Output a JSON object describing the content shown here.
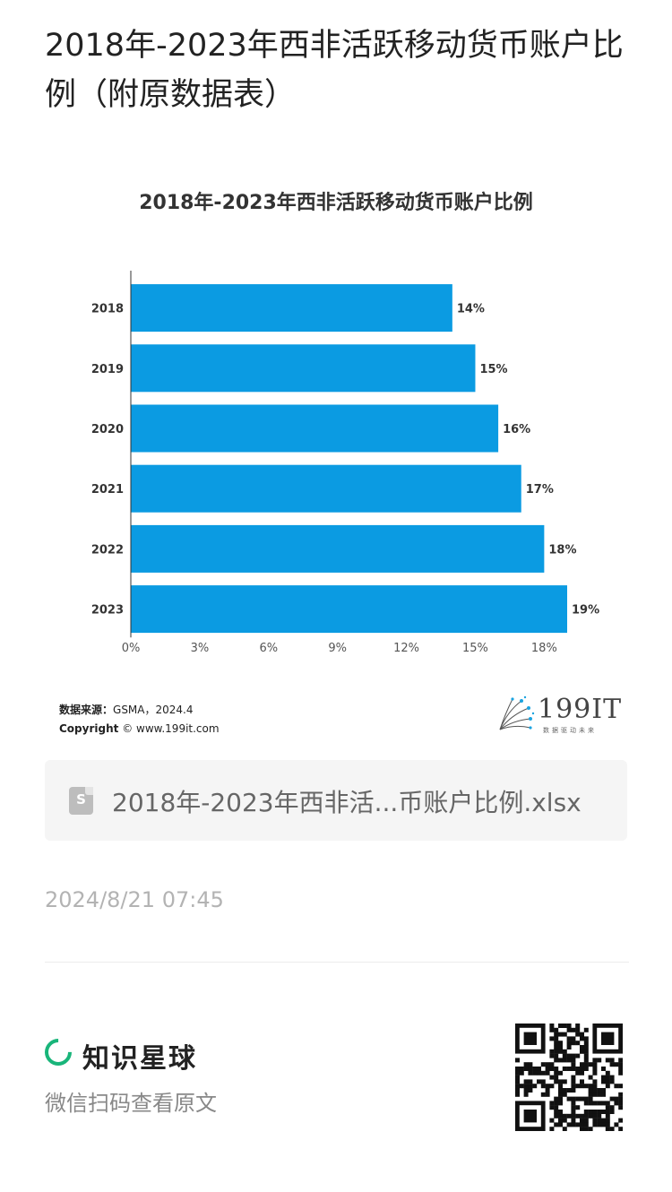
{
  "page": {
    "title": "2018年-2023年西非活跃移动货币账户比例（附原数据表）"
  },
  "chart_data": {
    "type": "bar",
    "orientation": "horizontal",
    "title": "2018年-2023年西非活跃移动货币账户比例",
    "categories": [
      "2018",
      "2019",
      "2020",
      "2021",
      "2022",
      "2023"
    ],
    "values": [
      14,
      15,
      16,
      17,
      18,
      19
    ],
    "value_labels": [
      "14%",
      "15%",
      "16%",
      "17%",
      "18%",
      "19%"
    ],
    "x_ticks": [
      "0%",
      "3%",
      "6%",
      "9%",
      "12%",
      "15%",
      "18%"
    ],
    "xlim": [
      0,
      19.5
    ],
    "xlabel": "",
    "ylabel": "",
    "grid": false,
    "bar_color": "#0b9be2"
  },
  "chart_footer": {
    "source_label": "数据来源：",
    "source_value": "GSMA，2024.4",
    "copyright_label": "Copyright",
    "copyright_value": "© www.199it.com"
  },
  "brand": {
    "name": "199IT",
    "tagline": "数据驱动未来"
  },
  "attachment": {
    "icon": "spreadsheet-file-icon",
    "icon_letter": "S",
    "file_name": "2018年-2023年西非活...币账户比例.xlsx"
  },
  "meta": {
    "timestamp": "2024/8/21 07:45"
  },
  "footer": {
    "app_name": "知识星球",
    "scan_text": "微信扫码查看原文",
    "accent_color": "#19b57a"
  }
}
